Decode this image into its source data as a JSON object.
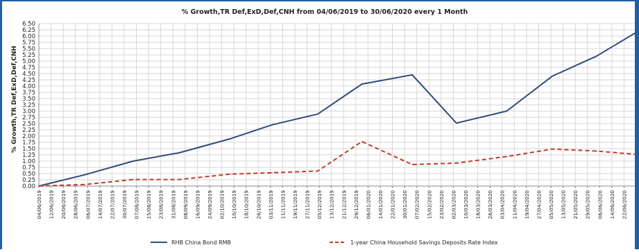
{
  "chart_data": {
    "type": "line",
    "title": "% Growth,TR Def,ExD,Def,CNH from 04/06/2019 to 30/06/2020 every 1 Month",
    "xlabel": "",
    "ylabel": "% Growth,TR Def,ExD,Def,CNH",
    "ylim": [
      0,
      6.5
    ],
    "yticks": [
      "0.00",
      "0.25",
      "0.50",
      "0.75",
      "1.00",
      "1.25",
      "1.50",
      "1.75",
      "2.00",
      "2.25",
      "2.50",
      "2.75",
      "3.00",
      "3.25",
      "3.50",
      "3.75",
      "4.00",
      "4.25",
      "4.50",
      "4.75",
      "5.00",
      "5.25",
      "5.50",
      "5.75",
      "6.00",
      "6.25",
      "6.50"
    ],
    "grid": true,
    "legend_position": "bottom",
    "x_dates": [
      "04/06/2019",
      "04/07/2019",
      "05/08/2019",
      "04/09/2019",
      "08/10/2019",
      "04/11/2019",
      "04/12/2019",
      "02/01/2020",
      "04/02/2020",
      "04/03/2020",
      "06/04/2020",
      "06/05/2020",
      "04/06/2020",
      "30/06/2020"
    ],
    "xticks": [
      "04/06/2019",
      "12/06/2019",
      "20/06/2019",
      "28/06/2019",
      "06/07/2019",
      "14/07/2019",
      "22/07/2019",
      "30/07/2019",
      "07/08/2019",
      "15/08/2019",
      "23/08/2019",
      "31/08/2019",
      "08/09/2019",
      "16/09/2019",
      "24/09/2019",
      "02/10/2019",
      "10/10/2019",
      "18/10/2019",
      "26/10/2019",
      "03/11/2019",
      "11/11/2019",
      "19/11/2019",
      "27/11/2019",
      "05/12/2019",
      "13/12/2019",
      "21/12/2019",
      "29/12/2019",
      "06/01/2020",
      "14/01/2020",
      "22/01/2020",
      "30/01/2020",
      "07/02/2020",
      "15/02/2020",
      "23/02/2020",
      "02/03/2020",
      "10/03/2020",
      "18/03/2020",
      "26/03/2020",
      "03/04/2020",
      "11/04/2020",
      "19/04/2020",
      "27/04/2020",
      "05/05/2020",
      "13/05/2020",
      "21/05/2020",
      "29/05/2020",
      "06/06/2020",
      "14/06/2020",
      "22/06/2020",
      "30/06/2020"
    ],
    "series": [
      {
        "name": "RHB China Bond RMB",
        "color": "#2e4a7a",
        "style": "solid",
        "values": [
          0.0,
          0.45,
          1.0,
          1.33,
          1.9,
          2.45,
          2.88,
          4.08,
          4.45,
          2.52,
          3.0,
          4.4,
          5.2,
          6.15
        ]
      },
      {
        "name": "1-year China Household Savings Deposits Rate Index",
        "color": "#c0392b",
        "style": "dashed",
        "values": [
          0.0,
          0.06,
          0.26,
          0.26,
          0.48,
          0.53,
          0.6,
          1.78,
          0.86,
          0.92,
          1.18,
          1.48,
          1.4,
          1.27
        ]
      }
    ]
  }
}
